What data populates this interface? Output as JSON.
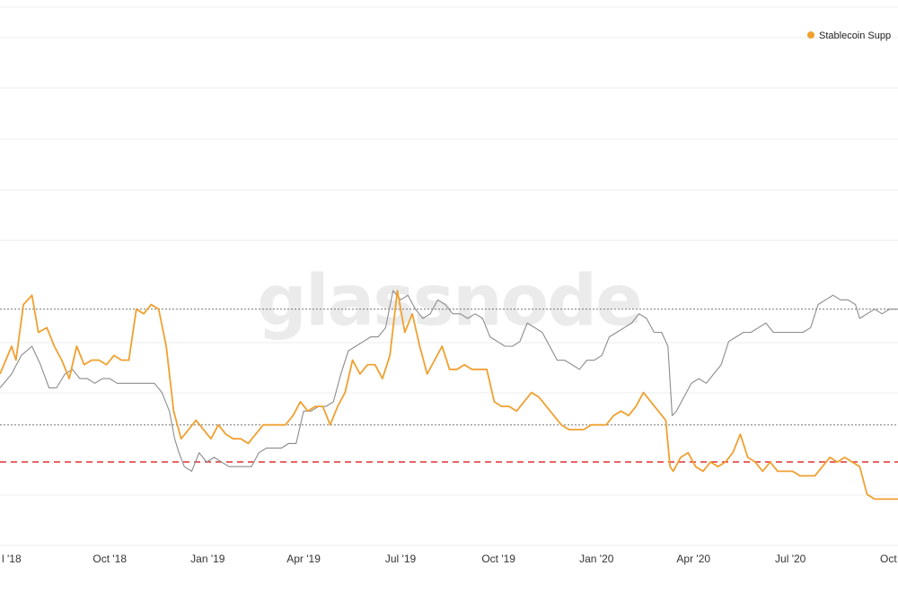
{
  "watermark": "glassnode",
  "colors": {
    "primary_series": "#f0a030",
    "secondary_series": "#8c8c8c",
    "reference_line": "#e03131",
    "dotted_line": "#777777",
    "grid": "#ececec"
  },
  "chart_data": {
    "type": "line",
    "title": "",
    "xlabel": "",
    "ylabel": "",
    "legend": {
      "position": "top-right",
      "entries": [
        "Stablecoin Supp"
      ]
    },
    "grid": true,
    "x_tick_labels": [
      "l '18",
      "Oct '18",
      "Jan '19",
      "Apr '19",
      "Jul '19",
      "Oct '19",
      "Jan '20",
      "Apr '20",
      "Jul '20",
      "Oct"
    ],
    "x_tick_dates": [
      "2018-07-01",
      "2018-10-01",
      "2019-01-01",
      "2019-04-01",
      "2019-07-01",
      "2019-10-01",
      "2020-01-01",
      "2020-04-01",
      "2020-07-01",
      "2020-10-01"
    ],
    "xlim": [
      "2018-06-20",
      "2020-10-10"
    ],
    "ylim": [
      0,
      11
    ],
    "reference_lines": [
      {
        "y": 1.8,
        "style": "dashed",
        "color": "#e03131"
      },
      {
        "y": 2.6,
        "style": "dotted",
        "color": "#777777"
      },
      {
        "y": 5.1,
        "style": "dotted",
        "color": "#777777"
      }
    ],
    "series": [
      {
        "name": "Stablecoin Supp",
        "color": "#f0a030",
        "points": [
          [
            "2018-06-20",
            3.7
          ],
          [
            "2018-07-01",
            4.3
          ],
          [
            "2018-07-05",
            4.0
          ],
          [
            "2018-07-12",
            5.2
          ],
          [
            "2018-07-20",
            5.4
          ],
          [
            "2018-07-26",
            4.6
          ],
          [
            "2018-08-03",
            4.7
          ],
          [
            "2018-08-10",
            4.3
          ],
          [
            "2018-08-17",
            4.0
          ],
          [
            "2018-08-24",
            3.6
          ],
          [
            "2018-08-31",
            4.3
          ],
          [
            "2018-09-07",
            3.9
          ],
          [
            "2018-09-14",
            4.0
          ],
          [
            "2018-09-21",
            4.0
          ],
          [
            "2018-09-28",
            3.9
          ],
          [
            "2018-10-05",
            4.1
          ],
          [
            "2018-10-12",
            4.0
          ],
          [
            "2018-10-19",
            4.0
          ],
          [
            "2018-10-26",
            5.1
          ],
          [
            "2018-11-02",
            5.0
          ],
          [
            "2018-11-09",
            5.2
          ],
          [
            "2018-11-16",
            5.1
          ],
          [
            "2018-11-23",
            4.3
          ],
          [
            "2018-11-30",
            2.9
          ],
          [
            "2018-12-07",
            2.3
          ],
          [
            "2018-12-14",
            2.5
          ],
          [
            "2018-12-21",
            2.7
          ],
          [
            "2018-12-28",
            2.5
          ],
          [
            "2019-01-04",
            2.3
          ],
          [
            "2019-01-11",
            2.6
          ],
          [
            "2019-01-18",
            2.4
          ],
          [
            "2019-01-25",
            2.3
          ],
          [
            "2019-02-01",
            2.3
          ],
          [
            "2019-02-08",
            2.2
          ],
          [
            "2019-02-15",
            2.4
          ],
          [
            "2019-02-22",
            2.6
          ],
          [
            "2019-03-01",
            2.6
          ],
          [
            "2019-03-08",
            2.6
          ],
          [
            "2019-03-15",
            2.6
          ],
          [
            "2019-03-22",
            2.8
          ],
          [
            "2019-03-29",
            3.1
          ],
          [
            "2019-04-05",
            2.9
          ],
          [
            "2019-04-12",
            3.0
          ],
          [
            "2019-04-19",
            3.0
          ],
          [
            "2019-04-26",
            2.6
          ],
          [
            "2019-05-03",
            3.0
          ],
          [
            "2019-05-10",
            3.3
          ],
          [
            "2019-05-17",
            4.0
          ],
          [
            "2019-05-24",
            3.7
          ],
          [
            "2019-05-31",
            3.9
          ],
          [
            "2019-06-07",
            3.9
          ],
          [
            "2019-06-14",
            3.6
          ],
          [
            "2019-06-21",
            4.1
          ],
          [
            "2019-06-28",
            5.5
          ],
          [
            "2019-07-05",
            4.6
          ],
          [
            "2019-07-12",
            5.0
          ],
          [
            "2019-07-19",
            4.3
          ],
          [
            "2019-07-26",
            3.7
          ],
          [
            "2019-08-02",
            4.0
          ],
          [
            "2019-08-09",
            4.3
          ],
          [
            "2019-08-16",
            3.8
          ],
          [
            "2019-08-23",
            3.8
          ],
          [
            "2019-08-30",
            3.9
          ],
          [
            "2019-09-06",
            3.8
          ],
          [
            "2019-09-13",
            3.8
          ],
          [
            "2019-09-20",
            3.8
          ],
          [
            "2019-09-27",
            3.1
          ],
          [
            "2019-10-04",
            3.0
          ],
          [
            "2019-10-11",
            3.0
          ],
          [
            "2019-10-18",
            2.9
          ],
          [
            "2019-10-25",
            3.1
          ],
          [
            "2019-11-01",
            3.3
          ],
          [
            "2019-11-08",
            3.2
          ],
          [
            "2019-11-15",
            3.0
          ],
          [
            "2019-11-22",
            2.8
          ],
          [
            "2019-11-29",
            2.6
          ],
          [
            "2019-12-06",
            2.5
          ],
          [
            "2019-12-13",
            2.5
          ],
          [
            "2019-12-20",
            2.5
          ],
          [
            "2019-12-27",
            2.6
          ],
          [
            "2020-01-03",
            2.6
          ],
          [
            "2020-01-10",
            2.6
          ],
          [
            "2020-01-17",
            2.8
          ],
          [
            "2020-01-24",
            2.9
          ],
          [
            "2020-01-31",
            2.8
          ],
          [
            "2020-02-07",
            3.0
          ],
          [
            "2020-02-14",
            3.3
          ],
          [
            "2020-02-21",
            3.1
          ],
          [
            "2020-02-28",
            2.9
          ],
          [
            "2020-03-06",
            2.7
          ],
          [
            "2020-03-10",
            1.7
          ],
          [
            "2020-03-13",
            1.6
          ],
          [
            "2020-03-20",
            1.9
          ],
          [
            "2020-03-27",
            2.0
          ],
          [
            "2020-04-03",
            1.7
          ],
          [
            "2020-04-10",
            1.6
          ],
          [
            "2020-04-17",
            1.8
          ],
          [
            "2020-04-24",
            1.7
          ],
          [
            "2020-05-01",
            1.8
          ],
          [
            "2020-05-08",
            2.0
          ],
          [
            "2020-05-15",
            2.4
          ],
          [
            "2020-05-22",
            1.9
          ],
          [
            "2020-05-29",
            1.8
          ],
          [
            "2020-06-05",
            1.6
          ],
          [
            "2020-06-12",
            1.8
          ],
          [
            "2020-06-19",
            1.6
          ],
          [
            "2020-06-26",
            1.6
          ],
          [
            "2020-07-03",
            1.6
          ],
          [
            "2020-07-10",
            1.5
          ],
          [
            "2020-07-17",
            1.5
          ],
          [
            "2020-07-24",
            1.5
          ],
          [
            "2020-07-31",
            1.7
          ],
          [
            "2020-08-07",
            1.9
          ],
          [
            "2020-08-14",
            1.8
          ],
          [
            "2020-08-21",
            1.9
          ],
          [
            "2020-08-28",
            1.8
          ],
          [
            "2020-09-04",
            1.7
          ],
          [
            "2020-09-11",
            1.1
          ],
          [
            "2020-09-18",
            1.0
          ],
          [
            "2020-09-25",
            1.0
          ],
          [
            "2020-10-02",
            1.0
          ],
          [
            "2020-10-10",
            1.0
          ]
        ]
      },
      {
        "color": "#8c8c8c",
        "points": [
          [
            "2018-06-20",
            3.4
          ],
          [
            "2018-07-01",
            3.7
          ],
          [
            "2018-07-10",
            4.1
          ],
          [
            "2018-07-20",
            4.3
          ],
          [
            "2018-07-28",
            3.9
          ],
          [
            "2018-08-05",
            3.4
          ],
          [
            "2018-08-12",
            3.4
          ],
          [
            "2018-08-20",
            3.7
          ],
          [
            "2018-08-27",
            3.8
          ],
          [
            "2018-09-03",
            3.6
          ],
          [
            "2018-09-10",
            3.6
          ],
          [
            "2018-09-17",
            3.5
          ],
          [
            "2018-09-24",
            3.6
          ],
          [
            "2018-10-01",
            3.6
          ],
          [
            "2018-10-08",
            3.5
          ],
          [
            "2018-10-15",
            3.5
          ],
          [
            "2018-10-22",
            3.5
          ],
          [
            "2018-10-29",
            3.5
          ],
          [
            "2018-11-05",
            3.5
          ],
          [
            "2018-11-12",
            3.5
          ],
          [
            "2018-11-19",
            3.3
          ],
          [
            "2018-11-26",
            2.9
          ],
          [
            "2018-12-01",
            2.3
          ],
          [
            "2018-12-05",
            2.0
          ],
          [
            "2018-12-10",
            1.7
          ],
          [
            "2018-12-17",
            1.6
          ],
          [
            "2018-12-24",
            2.0
          ],
          [
            "2018-12-31",
            1.8
          ],
          [
            "2019-01-07",
            1.9
          ],
          [
            "2019-01-14",
            1.8
          ],
          [
            "2019-01-21",
            1.7
          ],
          [
            "2019-01-28",
            1.7
          ],
          [
            "2019-02-04",
            1.7
          ],
          [
            "2019-02-11",
            1.7
          ],
          [
            "2019-02-18",
            2.0
          ],
          [
            "2019-02-25",
            2.1
          ],
          [
            "2019-03-04",
            2.1
          ],
          [
            "2019-03-11",
            2.1
          ],
          [
            "2019-03-18",
            2.2
          ],
          [
            "2019-03-25",
            2.2
          ],
          [
            "2019-04-01",
            2.9
          ],
          [
            "2019-04-08",
            2.9
          ],
          [
            "2019-04-15",
            3.0
          ],
          [
            "2019-04-22",
            3.0
          ],
          [
            "2019-04-29",
            3.1
          ],
          [
            "2019-05-06",
            3.7
          ],
          [
            "2019-05-13",
            4.2
          ],
          [
            "2019-05-20",
            4.3
          ],
          [
            "2019-05-27",
            4.4
          ],
          [
            "2019-06-03",
            4.5
          ],
          [
            "2019-06-10",
            4.5
          ],
          [
            "2019-06-17",
            4.7
          ],
          [
            "2019-06-24",
            5.5
          ],
          [
            "2019-07-01",
            5.3
          ],
          [
            "2019-07-08",
            5.4
          ],
          [
            "2019-07-15",
            5.1
          ],
          [
            "2019-07-22",
            4.9
          ],
          [
            "2019-07-29",
            5.0
          ],
          [
            "2019-08-05",
            5.3
          ],
          [
            "2019-08-12",
            5.2
          ],
          [
            "2019-08-19",
            5.0
          ],
          [
            "2019-08-26",
            5.0
          ],
          [
            "2019-09-02",
            4.9
          ],
          [
            "2019-09-09",
            5.0
          ],
          [
            "2019-09-16",
            4.9
          ],
          [
            "2019-09-23",
            4.5
          ],
          [
            "2019-09-30",
            4.4
          ],
          [
            "2019-10-07",
            4.3
          ],
          [
            "2019-10-14",
            4.3
          ],
          [
            "2019-10-21",
            4.4
          ],
          [
            "2019-10-28",
            4.8
          ],
          [
            "2019-11-04",
            4.7
          ],
          [
            "2019-11-11",
            4.6
          ],
          [
            "2019-11-18",
            4.3
          ],
          [
            "2019-11-25",
            4.0
          ],
          [
            "2019-12-02",
            4.0
          ],
          [
            "2019-12-09",
            3.9
          ],
          [
            "2019-12-16",
            3.8
          ],
          [
            "2019-12-23",
            4.0
          ],
          [
            "2019-12-30",
            4.0
          ],
          [
            "2020-01-06",
            4.1
          ],
          [
            "2020-01-13",
            4.5
          ],
          [
            "2020-01-20",
            4.6
          ],
          [
            "2020-01-27",
            4.7
          ],
          [
            "2020-02-03",
            4.8
          ],
          [
            "2020-02-10",
            5.0
          ],
          [
            "2020-02-17",
            4.9
          ],
          [
            "2020-02-24",
            4.6
          ],
          [
            "2020-03-02",
            4.6
          ],
          [
            "2020-03-08",
            4.3
          ],
          [
            "2020-03-12",
            2.8
          ],
          [
            "2020-03-16",
            2.9
          ],
          [
            "2020-03-23",
            3.2
          ],
          [
            "2020-03-30",
            3.5
          ],
          [
            "2020-04-06",
            3.6
          ],
          [
            "2020-04-13",
            3.5
          ],
          [
            "2020-04-20",
            3.7
          ],
          [
            "2020-04-27",
            3.9
          ],
          [
            "2020-05-04",
            4.4
          ],
          [
            "2020-05-11",
            4.5
          ],
          [
            "2020-05-18",
            4.6
          ],
          [
            "2020-05-25",
            4.6
          ],
          [
            "2020-06-01",
            4.7
          ],
          [
            "2020-06-08",
            4.8
          ],
          [
            "2020-06-15",
            4.6
          ],
          [
            "2020-06-22",
            4.6
          ],
          [
            "2020-06-29",
            4.6
          ],
          [
            "2020-07-06",
            4.6
          ],
          [
            "2020-07-13",
            4.6
          ],
          [
            "2020-07-20",
            4.7
          ],
          [
            "2020-07-27",
            5.2
          ],
          [
            "2020-08-03",
            5.3
          ],
          [
            "2020-08-10",
            5.4
          ],
          [
            "2020-08-17",
            5.3
          ],
          [
            "2020-08-24",
            5.3
          ],
          [
            "2020-08-31",
            5.2
          ],
          [
            "2020-09-04",
            4.9
          ],
          [
            "2020-09-11",
            5.0
          ],
          [
            "2020-09-18",
            5.1
          ],
          [
            "2020-09-25",
            5.0
          ],
          [
            "2020-10-02",
            5.1
          ],
          [
            "2020-10-10",
            5.1
          ]
        ]
      }
    ]
  }
}
